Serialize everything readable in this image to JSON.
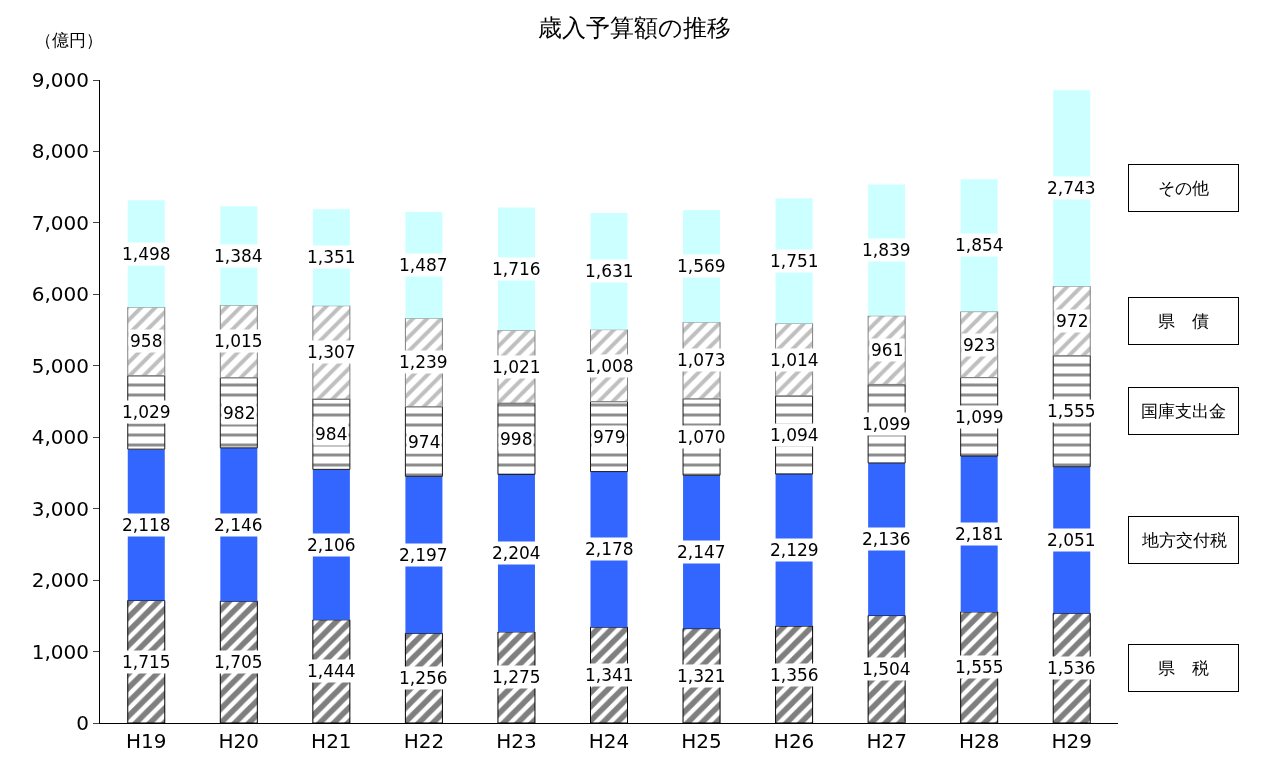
{
  "chart_data": {
    "type": "bar",
    "title": "歳入予算額の推移",
    "ylabel": "（億円）",
    "stacked": true,
    "legend": "right",
    "categories": [
      "H19",
      "H20",
      "H21",
      "H22",
      "H23",
      "H24",
      "H25",
      "H26",
      "H27",
      "H28",
      "H29"
    ],
    "series": [
      {
        "name": "県　税",
        "color": "#000000",
        "values": [
          1715,
          1705,
          1444,
          1256,
          1275,
          1341,
          1321,
          1356,
          1504,
          1555,
          1536
        ],
        "value_labels": [
          "1,715",
          "1,705",
          "1,444",
          "1,256",
          "1,275",
          "1,341",
          "1,321",
          "1,356",
          "1,504",
          "1,555",
          "1,536"
        ]
      },
      {
        "name": "地方交付税",
        "color": "#3366ff",
        "values": [
          2118,
          2146,
          2106,
          2197,
          2204,
          2178,
          2147,
          2129,
          2136,
          2181,
          2051
        ],
        "value_labels": [
          "2,118",
          "2,146",
          "2,106",
          "2,197",
          "2,204",
          "2,178",
          "2,147",
          "2,129",
          "2,136",
          "2,181",
          "2,051"
        ]
      },
      {
        "name": "国庫支出金",
        "color": "#1a1a1a",
        "values": [
          1029,
          982,
          984,
          974,
          998,
          979,
          1070,
          1094,
          1099,
          1099,
          1555
        ],
        "value_labels": [
          "1,029",
          "982",
          "984",
          "974",
          "998",
          "979",
          "1,070",
          "1,094",
          "1,099",
          "1,099",
          "1,555"
        ]
      },
      {
        "name": "県　債",
        "color": "#808080",
        "values": [
          958,
          1015,
          1307,
          1239,
          1021,
          1008,
          1073,
          1014,
          961,
          923,
          972
        ],
        "value_labels": [
          "958",
          "1,015",
          "1,307",
          "1,239",
          "1,021",
          "1,008",
          "1,073",
          "1,014",
          "961",
          "923",
          "972"
        ]
      },
      {
        "name": "その他",
        "color": "#ccffff",
        "values": [
          1498,
          1384,
          1351,
          1487,
          1716,
          1631,
          1569,
          1751,
          1839,
          1854,
          2743
        ],
        "value_labels": [
          "1,498",
          "1,384",
          "1,351",
          "1,487",
          "1,716",
          "1,631",
          "1,569",
          "1,751",
          "1,839",
          "1,854",
          "2,743"
        ]
      }
    ],
    "ylim": [
      0,
      9000
    ],
    "yticks": [
      0,
      {
        "value": 1000,
        "label": "1,000"
      },
      {
        "value": 2000,
        "label": "2,000"
      },
      {
        "value": 3000,
        "label": "3,000"
      },
      {
        "value": 4000,
        "label": "4,000"
      },
      {
        "value": 5000,
        "label": "5,000"
      },
      {
        "value": 6000,
        "label": "6,000"
      },
      {
        "value": 7000,
        "label": "7,000"
      },
      {
        "value": 8000,
        "label": "8,000"
      },
      {
        "value": 9000,
        "label": "9,000"
      }
    ]
  }
}
